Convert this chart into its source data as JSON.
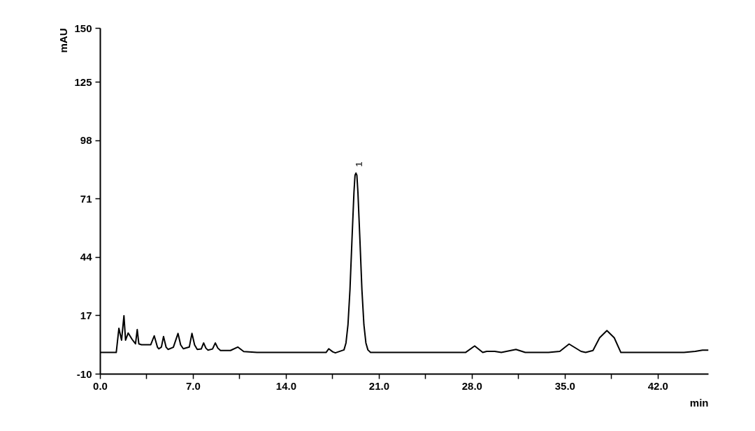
{
  "chart_data": {
    "type": "line",
    "xlabel": "min",
    "ylabel": "mAU",
    "xlim": [
      0,
      45.8
    ],
    "ylim": [
      -10,
      150
    ],
    "xticks": [
      {
        "value": 0,
        "label": "0.0"
      },
      {
        "value": 3.5,
        "label": null
      },
      {
        "value": 7,
        "label": "7.0"
      },
      {
        "value": 10.5,
        "label": null
      },
      {
        "value": 14,
        "label": "14.0"
      },
      {
        "value": 17.5,
        "label": null
      },
      {
        "value": 21,
        "label": "21.0"
      },
      {
        "value": 24.5,
        "label": null
      },
      {
        "value": 28,
        "label": "28.0"
      },
      {
        "value": 31.5,
        "label": null
      },
      {
        "value": 35,
        "label": "35.0"
      },
      {
        "value": 38.5,
        "label": null
      },
      {
        "value": 42,
        "label": "42.0"
      }
    ],
    "yticks": [
      -10,
      17,
      44,
      71,
      98,
      125,
      150
    ],
    "grid": false,
    "marker": "none",
    "line_style": "solid",
    "annotations": [
      {
        "text": "1",
        "x": 19.25,
        "y": 83
      }
    ],
    "series": [
      {
        "color": "#000000",
        "x": [
          0,
          1.2,
          1.4,
          1.6,
          1.78,
          1.9,
          2.1,
          2.4,
          2.65,
          2.78,
          2.9,
          3.1,
          3.8,
          4.06,
          4.3,
          4.4,
          4.6,
          4.76,
          4.95,
          5.1,
          5.5,
          5.85,
          6.05,
          6.25,
          6.7,
          6.9,
          7.1,
          7.3,
          7.6,
          7.78,
          7.95,
          8.1,
          8.45,
          8.66,
          8.85,
          9.05,
          9.8,
          10.35,
          10.8,
          11.8,
          17.0,
          17.2,
          17.5,
          17.7,
          18.35,
          18.5,
          18.65,
          18.8,
          18.95,
          19.1,
          19.18,
          19.25,
          19.32,
          19.4,
          19.55,
          19.7,
          19.85,
          20.0,
          20.15,
          20.35,
          27.5,
          28.19,
          28.8,
          29.1,
          29.7,
          30.2,
          31.3,
          32.0,
          33.75,
          34.6,
          35.3,
          36.2,
          36.55,
          37.1,
          37.6,
          38.15,
          38.7,
          39.2,
          43.95,
          44.8,
          45.35,
          45.8
        ],
        "values": [
          0,
          0,
          11.2,
          5.7,
          17,
          5.7,
          9,
          6,
          4,
          10.6,
          4,
          3.6,
          3.6,
          7.7,
          2.5,
          1.7,
          2.5,
          7.4,
          2.5,
          1.4,
          2.4,
          8.8,
          3.5,
          1.7,
          2.5,
          8.8,
          3.5,
          1.4,
          1.6,
          4.4,
          2,
          1.1,
          1.6,
          4.4,
          2,
          0.9,
          0.9,
          2.5,
          0.4,
          0,
          0,
          1.7,
          0.3,
          -0.2,
          1.2,
          4.4,
          12.8,
          29,
          52,
          74,
          82,
          83,
          82,
          74,
          52,
          29,
          12.8,
          4.4,
          1.2,
          0,
          0,
          3.0,
          0,
          0.5,
          0.5,
          0,
          1.4,
          0,
          0,
          0.5,
          3.9,
          0.5,
          0,
          0.9,
          6.8,
          10.1,
          6.8,
          0,
          0,
          0.5,
          1.1,
          1.1
        ]
      }
    ]
  }
}
